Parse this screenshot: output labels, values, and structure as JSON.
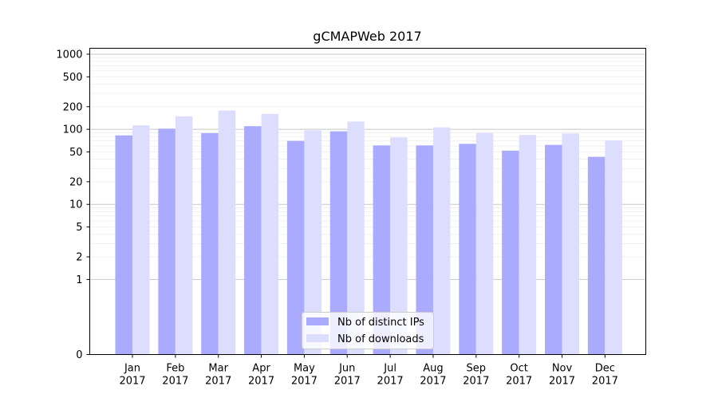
{
  "chart_data": {
    "type": "bar",
    "title": "gCMAPWeb 2017",
    "xlabel": "",
    "ylabel": "",
    "categories": [
      [
        "Jan",
        "2017"
      ],
      [
        "Feb",
        "2017"
      ],
      [
        "Mar",
        "2017"
      ],
      [
        "Apr",
        "2017"
      ],
      [
        "May",
        "2017"
      ],
      [
        "Jun",
        "2017"
      ],
      [
        "Jul",
        "2017"
      ],
      [
        "Aug",
        "2017"
      ],
      [
        "Sep",
        "2017"
      ],
      [
        "Oct",
        "2017"
      ],
      [
        "Nov",
        "2017"
      ],
      [
        "Dec",
        "2017"
      ]
    ],
    "series": [
      {
        "name": "Nb of distinct IPs",
        "color": "#aaaaff",
        "values": [
          83,
          102,
          89,
          110,
          70,
          94,
          61,
          61,
          64,
          52,
          62,
          43
        ]
      },
      {
        "name": "Nb of downloads",
        "color": "#ddddff",
        "values": [
          113,
          149,
          178,
          160,
          97,
          127,
          78,
          106,
          89,
          84,
          88,
          71
        ]
      }
    ],
    "y_scale": "symlog",
    "ylim": [
      0,
      1200
    ],
    "yticks": [
      0,
      1,
      2,
      5,
      10,
      20,
      50,
      100,
      200,
      500,
      1000
    ],
    "grid": true,
    "legend_position": "lower center"
  }
}
